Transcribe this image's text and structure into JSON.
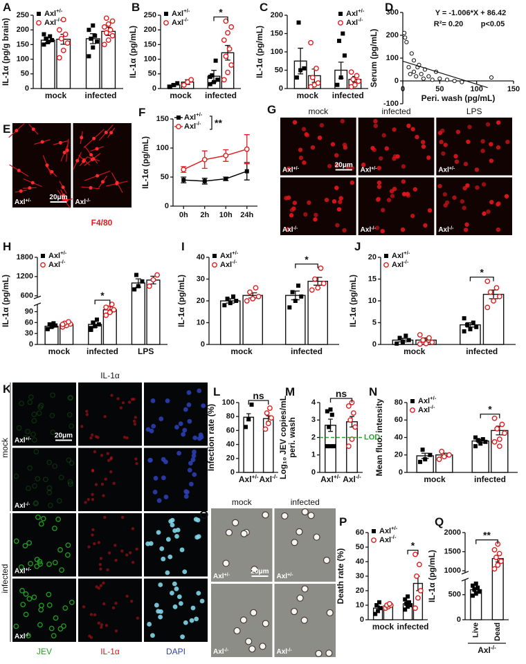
{
  "chart_data": [
    {
      "type": "bar",
      "panel": "A",
      "ylabel": "IL-1α (pg/g brain)",
      "categories": [
        "mock",
        "infected"
      ],
      "ylim": [
        0,
        250
      ],
      "yticks": [
        0,
        50,
        100,
        150,
        200,
        250
      ],
      "legend": "upper left",
      "series": [
        {
          "name": "Axl+/-",
          "color": "#000000",
          "marker": "square",
          "values": [
            165,
            170
          ],
          "errors": [
            8,
            17
          ],
          "points": [
            [
              150,
              158,
              165,
              170,
              178,
              185
            ],
            [
              110,
              140,
              160,
              170,
              180,
              200,
              215
            ]
          ]
        },
        {
          "name": "Axl-/-",
          "color": "#e41a1c",
          "marker": "circle",
          "values": [
            168,
            195
          ],
          "errors": [
            17,
            14
          ],
          "points": [
            [
              105,
              130,
              155,
              170,
              185,
              200,
              235
            ],
            [
              150,
              165,
              180,
              190,
              200,
              210,
              220,
              230,
              240
            ]
          ]
        }
      ]
    },
    {
      "type": "bar",
      "panel": "B",
      "ylabel": "IL-1α (pg/mL)",
      "categories": [
        "mock",
        "infected"
      ],
      "ylim": [
        0,
        250
      ],
      "yticks": [
        0,
        50,
        100,
        150,
        200,
        250
      ],
      "legend": "upper left",
      "significance": [
        {
          "label": "*",
          "category": "infected"
        }
      ],
      "series": [
        {
          "name": "Axl+/-",
          "color": "#000000",
          "marker": "square",
          "values": [
            12,
            42
          ],
          "errors": [
            4,
            20
          ],
          "points": [
            [
              5,
              12,
              18
            ],
            [
              15,
              22,
              30,
              45,
              95,
              40
            ]
          ]
        },
        {
          "name": "Axl-/-",
          "color": "#e41a1c",
          "marker": "circle",
          "values": [
            22,
            122
          ],
          "errors": [
            8,
            25
          ],
          "points": [
            [
              12,
              22,
              30
            ],
            [
              30,
              55,
              80,
              110,
              135,
              165,
              190,
              210,
              230
            ]
          ]
        }
      ]
    },
    {
      "type": "bar",
      "panel": "C",
      "ylabel": "IL-1α (pg/mL)",
      "categories": [
        "mock",
        "infected"
      ],
      "ylim": [
        0,
        200
      ],
      "yticks": [
        0,
        50,
        100,
        150,
        200
      ],
      "legend": "upper right",
      "series": [
        {
          "name": "Axl+/-",
          "color": "#000000",
          "marker": "square",
          "values": [
            75,
            50
          ],
          "errors": [
            35,
            22
          ],
          "points": [
            [
              30,
              50,
              55,
              180
            ],
            [
              10,
              30,
              90,
              130,
              150
            ]
          ]
        },
        {
          "name": "Axl-/-",
          "color": "#e41a1c",
          "marker": "circle",
          "values": [
            35,
            25
          ],
          "errors": [
            18,
            8
          ],
          "points": [
            [
              5,
              10,
              15,
              30,
              55,
              125
            ],
            [
              5,
              10,
              20,
              25,
              35,
              45
            ]
          ]
        }
      ]
    },
    {
      "type": "scatter",
      "panel": "D",
      "xlabel": "Peri. wash (pg/mL)",
      "ylabel": "Serum (pg/mL)",
      "x": [
        2,
        3,
        5,
        8,
        10,
        12,
        15,
        15,
        18,
        20,
        22,
        25,
        28,
        30,
        35,
        40,
        45,
        50,
        60,
        70,
        80,
        120
      ],
      "y": [
        210,
        190,
        170,
        60,
        30,
        120,
        90,
        40,
        20,
        60,
        70,
        30,
        10,
        50,
        20,
        5,
        40,
        10,
        5,
        0,
        -5,
        15
      ],
      "xlim": [
        0,
        150
      ],
      "xticks": [
        0,
        50,
        100,
        150
      ],
      "ylim": [
        -100,
        300
      ],
      "yticks": [
        -100,
        0,
        100,
        200,
        300
      ],
      "fit": {
        "slope": -1.006,
        "intercept": 86.42,
        "xlim": [
          0,
          115
        ]
      },
      "annotations": [
        "Y = -1.006*X + 86.42",
        "R²= 0.20",
        "p<0.05"
      ]
    },
    {
      "type": "line",
      "panel": "F",
      "ylabel": "IL-1α (pg/mL)",
      "categories": [
        "0h",
        "2h",
        "10h",
        "24h"
      ],
      "ylim": [
        0,
        150
      ],
      "yticks": [
        0,
        50,
        100,
        150
      ],
      "legend": "upper left",
      "significance": [
        {
          "label": "**"
        }
      ],
      "series": [
        {
          "name": "Axl+/-",
          "color": "#000000",
          "marker": "square",
          "values": [
            45,
            43,
            47,
            60
          ],
          "errors": [
            5,
            5,
            3,
            15
          ]
        },
        {
          "name": "Axl-/-",
          "color": "#e41a1c",
          "marker": "circle",
          "values": [
            63,
            80,
            87,
            98
          ],
          "errors": [
            5,
            15,
            10,
            25
          ]
        }
      ]
    },
    {
      "type": "bar",
      "panel": "H",
      "ylabel": "IL-1α (pg/mL)",
      "categories": [
        "mock",
        "infected",
        "LPS"
      ],
      "ylim_segments": [
        [
          0,
          110
        ],
        [
          550,
          1800
        ]
      ],
      "yticks": [
        0,
        30,
        60,
        90,
        600,
        1200,
        1800
      ],
      "legend": "upper left",
      "significance": [
        {
          "label": "*",
          "category": "infected"
        }
      ],
      "series": [
        {
          "name": "Axl+/-",
          "color": "#000000",
          "marker": "square",
          "values": [
            50,
            55,
            1000
          ],
          "errors": [
            4,
            8,
            130
          ],
          "points": [
            [
              42,
              48,
              52,
              55,
              58
            ],
            [
              40,
              50,
              55,
              60,
              68,
              45
            ],
            [
              800,
              900,
              1050,
              1250
            ]
          ]
        },
        {
          "name": "Axl-/-",
          "color": "#e41a1c",
          "marker": "circle",
          "values": [
            55,
            95,
            1090
          ],
          "errors": [
            3,
            8,
            120
          ],
          "points": [
            [
              48,
              52,
              56,
              58,
              62,
              55
            ],
            [
              80,
              88,
              95,
              100,
              110,
              102
            ],
            [
              900,
              1100,
              1250
            ]
          ]
        }
      ]
    },
    {
      "type": "bar",
      "panel": "I",
      "ylabel": "IL-1α (pg/mL)",
      "categories": [
        "mock",
        "infected"
      ],
      "ylim": [
        0,
        40
      ],
      "yticks": [
        0,
        10,
        20,
        30,
        40
      ],
      "legend": "upper left",
      "significance": [
        {
          "label": "*",
          "category": "infected"
        }
      ],
      "series": [
        {
          "name": "Axl+/-",
          "color": "#000000",
          "marker": "square",
          "values": [
            20,
            22.5
          ],
          "errors": [
            1,
            2
          ],
          "points": [
            [
              18,
              19,
              20,
              21,
              22
            ],
            [
              17,
              20,
              22,
              24,
              27
            ]
          ]
        },
        {
          "name": "Axl-/-",
          "color": "#e41a1c",
          "marker": "circle",
          "values": [
            22.5,
            29
          ],
          "errors": [
            1.2,
            1.8
          ],
          "points": [
            [
              20,
              21,
              22,
              24,
              26
            ],
            [
              25,
              26,
              28,
              30,
              35
            ]
          ]
        }
      ]
    },
    {
      "type": "bar",
      "panel": "J",
      "ylabel": "IL-1α (pg/mL)",
      "categories": [
        "mock",
        "infected"
      ],
      "ylim": [
        0,
        20
      ],
      "yticks": [
        0,
        5,
        10,
        15,
        20
      ],
      "legend": "upper left",
      "significance": [
        {
          "label": "*",
          "category": "infected"
        }
      ],
      "series": [
        {
          "name": "Axl+/-",
          "color": "#000000",
          "marker": "square",
          "values": [
            1,
            4.5
          ],
          "errors": [
            0.4,
            0.5
          ],
          "points": [
            [
              0.2,
              0.5,
              1,
              1.5,
              2
            ],
            [
              3,
              3.5,
              4,
              4.5,
              5,
              6
            ]
          ]
        },
        {
          "name": "Axl-/-",
          "color": "#e41a1c",
          "marker": "circle",
          "values": [
            1,
            11.5
          ],
          "errors": [
            0.5,
            1
          ],
          "points": [
            [
              0.1,
              0.2,
              0.5,
              1,
              1.5,
              2.2
            ],
            [
              8.5,
              10,
              11,
              12,
              13,
              14.5
            ]
          ]
        }
      ]
    },
    {
      "type": "bar",
      "panel": "L",
      "ylabel": "Infection rate (%)",
      "categories": [
        "Axl+/-",
        "Axl-/-"
      ],
      "ylim": [
        0,
        100
      ],
      "yticks": [
        0,
        20,
        40,
        60,
        80,
        100
      ],
      "values": [
        79,
        77
      ],
      "errors": [
        5,
        4
      ],
      "points": [
        [
          65,
          76,
          97
        ],
        [
          62,
          70,
          78,
          85,
          92
        ]
      ],
      "colors": [
        "#000000",
        "#e41a1c"
      ],
      "markers": [
        "square",
        "circle"
      ],
      "significance": [
        {
          "label": "ns"
        }
      ]
    },
    {
      "type": "bar",
      "panel": "M",
      "ylabel": [
        "Log₁₀ JEV copies/mL",
        "peri. wash"
      ],
      "categories": [
        "Axl+/-",
        "Axl-/-"
      ],
      "ylim": [
        0,
        4
      ],
      "yticks": [
        0,
        1,
        2,
        3,
        4
      ],
      "values": [
        2.7,
        2.9
      ],
      "errors": [
        0.35,
        0.3
      ],
      "points": [
        [
          1.5,
          1.5,
          1.5,
          2.6,
          3.3,
          3.5,
          3.6
        ],
        [
          1.5,
          1.9,
          2.6,
          3.0,
          3.4,
          3.8,
          4.0
        ]
      ],
      "colors": [
        "#000000",
        "#e41a1c"
      ],
      "markers": [
        "square",
        "circle"
      ],
      "reference_line": {
        "value": 2,
        "label": "LOD",
        "color": "#2ca02c"
      },
      "significance": [
        {
          "label": "ns"
        }
      ]
    },
    {
      "type": "bar",
      "panel": "N",
      "ylabel": "Mean fluo. intensity",
      "categories": [
        "mock",
        "infected"
      ],
      "ylim": [
        0,
        80
      ],
      "yticks": [
        0,
        20,
        40,
        60,
        80
      ],
      "legend": "upper left",
      "significance": [
        {
          "label": "*",
          "category": "infected"
        }
      ],
      "series": [
        {
          "name": "Axl+/-",
          "color": "#000000",
          "marker": "square",
          "values": [
            19,
            36
          ],
          "errors": [
            3,
            2
          ],
          "points": [
            [
              12,
              15,
              20,
              26
            ],
            [
              30,
              33,
              35,
              37,
              38,
              40
            ]
          ]
        },
        {
          "name": "Axl-/-",
          "color": "#e41a1c",
          "marker": "circle",
          "values": [
            20,
            48
          ],
          "errors": [
            2,
            5
          ],
          "points": [
            [
              15,
              18,
              20,
              24
            ],
            [
              35,
              38,
              45,
              50,
              55,
              62,
              30
            ]
          ]
        }
      ]
    },
    {
      "type": "bar",
      "panel": "P",
      "ylabel": "Death rate (%)",
      "categories": [
        "mock",
        "infected"
      ],
      "ylim": [
        0,
        60
      ],
      "yticks": [
        0,
        10,
        20,
        30,
        40,
        50,
        60
      ],
      "legend": "upper left",
      "significance": [
        {
          "label": "*",
          "category": "infected"
        }
      ],
      "series": [
        {
          "name": "Axl+/-",
          "color": "#000000",
          "marker": "square",
          "values": [
            8,
            11
          ],
          "errors": [
            1.5,
            1.5
          ],
          "points": [
            [
              4,
              6,
              8,
              10,
              12
            ],
            [
              7,
              9,
              10,
              11,
              12,
              14,
              16
            ]
          ]
        },
        {
          "name": "Axl-/-",
          "color": "#e41a1c",
          "marker": "circle",
          "values": [
            9.5,
            25
          ],
          "errors": [
            1,
            5
          ],
          "points": [
            [
              8,
              9,
              10,
              10,
              11
            ],
            [
              8,
              15,
              20,
              30,
              38,
              45
            ]
          ]
        }
      ]
    },
    {
      "type": "bar",
      "panel": "Q",
      "ylabel": "IL-1α (pg/mL)",
      "xlabel": "Axl-/-",
      "categories": [
        "Live",
        "Dead"
      ],
      "ylim_segments": [
        [
          0,
          800
        ],
        [
          950,
          2000
        ]
      ],
      "yticks": [
        0,
        500,
        1000,
        1500,
        2000
      ],
      "values": [
        600,
        1320
      ],
      "errors": [
        40,
        90
      ],
      "points": [
        [
          480,
          520,
          560,
          600,
          640,
          680,
          720
        ],
        [
          1050,
          1150,
          1250,
          1350,
          1450,
          1550,
          1700
        ]
      ],
      "colors": [
        "#000000",
        "#e41a1c"
      ],
      "markers": [
        "square",
        "circle"
      ],
      "significance": [
        {
          "label": "**"
        }
      ]
    }
  ],
  "images": [
    {
      "panel": "E",
      "tile_labels": [
        [
          "Axl+/-",
          "Axl-/-"
        ]
      ],
      "scale_bar": "20μm",
      "stain": "F4/80",
      "stain_color": "#e41a1c"
    },
    {
      "panel": "G",
      "columns": [
        "mock",
        "infected",
        "LPS"
      ],
      "tile_labels": [
        [
          "Axl+/-",
          "Axl+/-",
          "Axl+/-"
        ],
        [
          "Axl-/-",
          "Axl-/-",
          "Axl-/-"
        ]
      ],
      "scale_bar": "20μm"
    },
    {
      "panel": "K",
      "title": "IL-1α",
      "row_groups": [
        "mock",
        "infected"
      ],
      "tile_labels": [
        [
          "Axl+/-"
        ],
        [
          "Axl-/-"
        ],
        [
          "Axl+/-"
        ],
        [
          "Axl-/-"
        ]
      ],
      "scale_bar": "20μm",
      "channels": [
        "JEV",
        "IL-1α",
        "DAPI"
      ],
      "channel_colors": [
        "#21a121",
        "#c8161c",
        "#2b3fb3"
      ]
    },
    {
      "panel": "O",
      "columns": [
        "mock",
        "infected"
      ],
      "tile_labels": [
        [
          "Axl+/-",
          "Axl+/-"
        ],
        [
          "Axl-/-",
          "Axl-/-"
        ]
      ],
      "scale_bar": "20μm"
    }
  ]
}
